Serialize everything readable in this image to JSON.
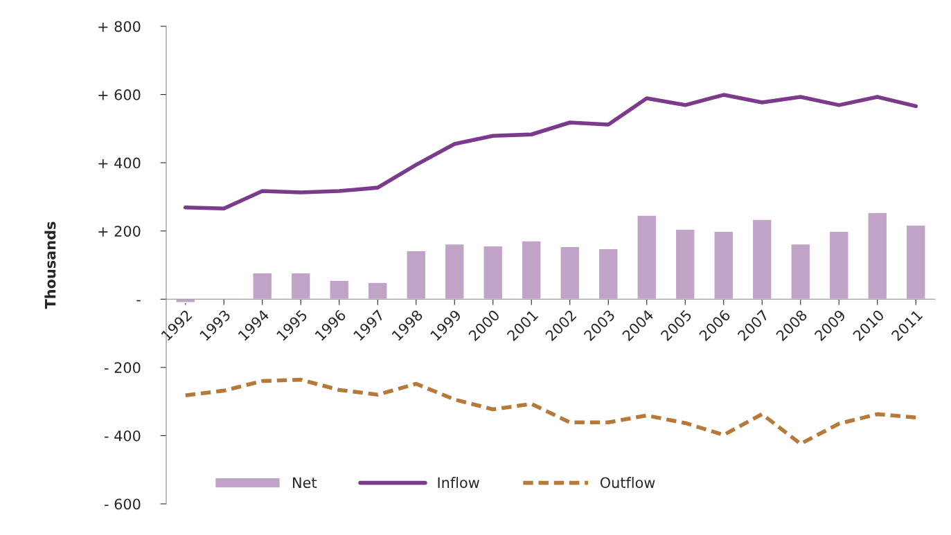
{
  "chart_data": {
    "type": "bar",
    "ylabel": "Thousands",
    "categories": [
      "1992",
      "1993",
      "1994",
      "1995",
      "1996",
      "1997",
      "1998",
      "1999",
      "2000",
      "2001",
      "2002",
      "2003",
      "2004",
      "2005",
      "2006",
      "2007",
      "2008",
      "2009",
      "2010",
      "2011"
    ],
    "series": [
      {
        "name": "Net",
        "color": "#c0a3c6",
        "values": [
          -10,
          null,
          77,
          77,
          55,
          49,
          142,
          162,
          156,
          171,
          154,
          148,
          246,
          205,
          199,
          234,
          162,
          199,
          254,
          217
        ]
      },
      {
        "name": "Inflow",
        "type": "line",
        "color": "#7b3a8c",
        "line_style": "solid",
        "values": [
          269,
          266,
          317,
          313,
          317,
          327,
          394,
          455,
          479,
          483,
          518,
          512,
          589,
          569,
          599,
          577,
          593,
          569,
          593,
          566
        ]
      },
      {
        "name": "Outflow",
        "type": "line",
        "color": "#b5793a",
        "line_style": "dashed",
        "values": [
          -282,
          -268,
          -240,
          -236,
          -266,
          -280,
          -248,
          -294,
          -323,
          -307,
          -361,
          -361,
          -341,
          -363,
          -398,
          -337,
          -424,
          -365,
          -337,
          -347
        ]
      }
    ],
    "ylim": [
      -600,
      800
    ],
    "yticks": [
      {
        "value": 800,
        "label": "+ 800"
      },
      {
        "value": 600,
        "label": "+ 600"
      },
      {
        "value": 400,
        "label": "+ 400"
      },
      {
        "value": 200,
        "label": "+ 200"
      },
      {
        "value": 0,
        "label": "-"
      },
      {
        "value": -200,
        "label": "- 200"
      },
      {
        "value": -400,
        "label": "- 400"
      },
      {
        "value": -600,
        "label": "- 600"
      }
    ],
    "grid": false,
    "legend": "bottom",
    "marker": "none"
  }
}
